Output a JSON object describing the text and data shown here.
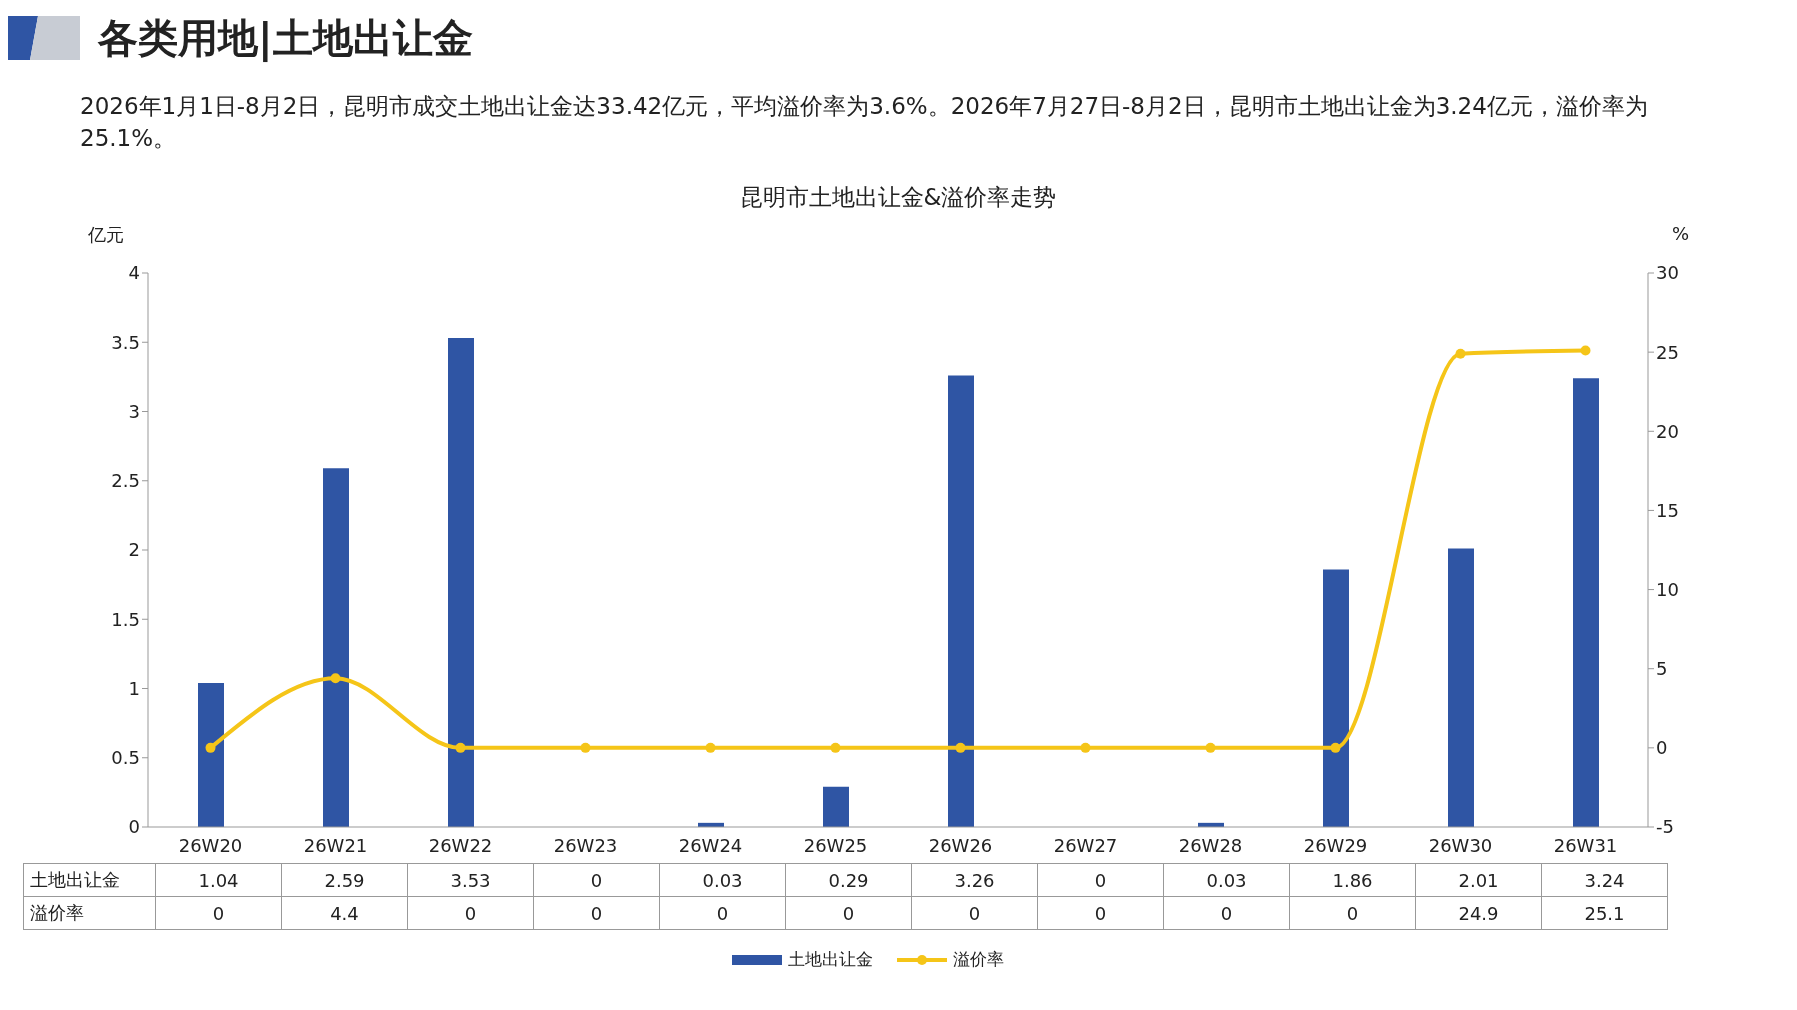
{
  "chart_data": {
    "type": "bar",
    "title": "各类用地|土地出让金",
    "subtitle": "昆明市土地出让金&溢价率走势",
    "annotations": [
      "2026年1月1日-8月2日，昆明市成交土地出让金达33.42亿元，平均溢价率为3.6%。2026年7月27日-8月2日，昆明市土地出让金为3.24亿元，溢价率为25.1%。"
    ],
    "ylabel": "亿元",
    "y2label": "%",
    "categories": [
      "26W20",
      "26W21",
      "26W22",
      "26W23",
      "26W24",
      "26W25",
      "26W26",
      "26W27",
      "26W28",
      "26W29",
      "26W30",
      "26W31"
    ],
    "series": [
      {
        "name": "土地出让金",
        "color": "#2f55a4",
        "values": [
          1.04,
          2.59,
          3.53,
          0,
          0.03,
          0.29,
          3.26,
          0,
          0.03,
          1.86,
          2.01,
          3.24
        ]
      },
      {
        "name": "溢价率",
        "type": "line",
        "axis": "y2",
        "color": "#f5c518",
        "values": [
          0,
          4.4,
          0,
          0,
          0,
          0,
          0,
          0,
          0,
          0,
          24.9,
          25.1
        ]
      }
    ],
    "ylim": [
      0,
      4
    ],
    "yticks": [
      0,
      0.5,
      1,
      1.5,
      2,
      2.5,
      3,
      3.5,
      4
    ],
    "y2lim": [
      -5,
      30
    ],
    "y2ticks": [
      -5,
      0,
      5,
      10,
      15,
      20,
      25,
      30
    ],
    "data_labels": true,
    "legend": "bottom",
    "grid": false,
    "marker": "circle",
    "line_style": "solid"
  }
}
